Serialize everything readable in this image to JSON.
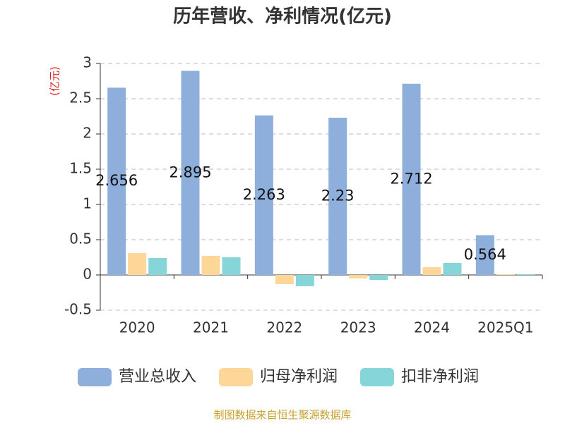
{
  "chart_data": {
    "type": "bar",
    "title": "历年营收、净利情况(亿元)",
    "y_axis_label": "(亿元)",
    "categories": [
      "2020",
      "2021",
      "2022",
      "2023",
      "2024",
      "2025Q1"
    ],
    "series": [
      {
        "name": "营业总收入",
        "color": "#8eaedb",
        "values": [
          2.656,
          2.895,
          2.263,
          2.23,
          2.712,
          0.564
        ],
        "show_values": true
      },
      {
        "name": "归母净利润",
        "color": "#fdd698",
        "values": [
          0.31,
          0.27,
          -0.13,
          -0.05,
          0.11,
          0.01
        ],
        "show_values": false
      },
      {
        "name": "扣非净利润",
        "color": "#86d5d8",
        "values": [
          0.24,
          0.25,
          -0.16,
          -0.07,
          0.17,
          0.01
        ],
        "show_values": false
      }
    ],
    "ylim": [
      -0.5,
      3
    ],
    "yticks": [
      -0.5,
      0,
      0.5,
      1,
      1.5,
      2,
      2.5,
      3
    ],
    "grid": true,
    "legend": "bottom",
    "source": "制图数据来自恒生聚源数据库"
  }
}
